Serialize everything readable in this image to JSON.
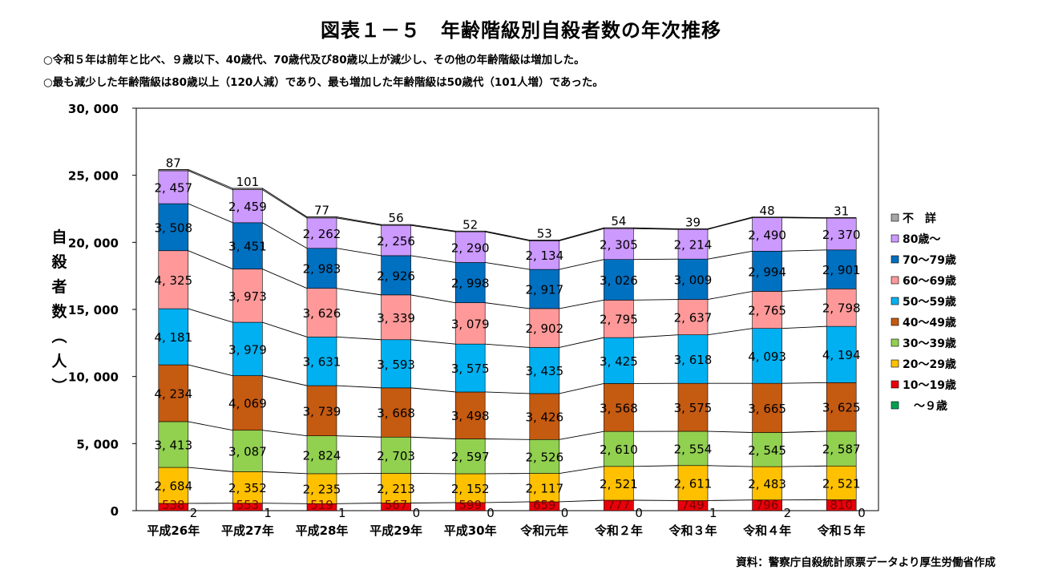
{
  "header": {
    "title": "図表１－５　年齢階級別自殺者数の年次推移",
    "note1": "○令和５年は前年と比べ、９歳以下、40歳代、70歳代及び80歳以上が減少し、その他の年齢階級は増加した。",
    "note2": "○最も減少した年齢階級は80歳以上（120人減）であり、最も増加した年齢階級は50歳代（101人増）であった。"
  },
  "footer": {
    "source": "資料：警察庁自殺統計原票データより厚生労働省作成"
  },
  "chart_data": {
    "type": "bar",
    "stacked": true,
    "title": "",
    "xlabel": "",
    "ylabel": "自殺者数（人）",
    "ylim": [
      0,
      30000
    ],
    "yticks": [
      "0",
      "5, 000",
      "10, 000",
      "15, 000",
      "20, 000",
      "25, 000",
      "30, 000"
    ],
    "categories": [
      "平成26年",
      "平成27年",
      "平成28年",
      "平成29年",
      "平成30年",
      "令和元年",
      "令和２年",
      "令和３年",
      "令和４年",
      "令和５年"
    ],
    "legend_position": "right",
    "series": [
      {
        "name": "　～９歳",
        "color": "#00a050",
        "values": [
          2,
          1,
          1,
          0,
          0,
          0,
          0,
          1,
          2,
          0
        ],
        "labels": [
          "2",
          "1",
          "1",
          "0",
          "0",
          "0",
          "0",
          "1",
          "2",
          "0"
        ]
      },
      {
        "name": "10～19歳",
        "color": "#e8000a",
        "values": [
          538,
          553,
          519,
          567,
          599,
          659,
          777,
          749,
          796,
          810
        ],
        "labels": [
          "538",
          "553",
          "519",
          "567",
          "599",
          "659",
          "777",
          "749",
          "796",
          "810"
        ]
      },
      {
        "name": "20～29歳",
        "color": "#ffc000",
        "values": [
          2684,
          2352,
          2235,
          2213,
          2152,
          2117,
          2521,
          2611,
          2483,
          2521
        ],
        "labels": [
          "2, 684",
          "2, 352",
          "2, 235",
          "2, 213",
          "2, 152",
          "2, 117",
          "2, 521",
          "2, 611",
          "2, 483",
          "2, 521"
        ]
      },
      {
        "name": "30～39歳",
        "color": "#92d050",
        "values": [
          3413,
          3087,
          2824,
          2703,
          2597,
          2526,
          2610,
          2554,
          2545,
          2587
        ],
        "labels": [
          "3, 413",
          "3, 087",
          "2, 824",
          "2, 703",
          "2, 597",
          "2, 526",
          "2, 610",
          "2, 554",
          "2, 545",
          "2, 587"
        ]
      },
      {
        "name": "40～49歳",
        "color": "#c55a11",
        "values": [
          4234,
          4069,
          3739,
          3668,
          3498,
          3426,
          3568,
          3575,
          3665,
          3625
        ],
        "labels": [
          "4, 234",
          "4, 069",
          "3, 739",
          "3, 668",
          "3, 498",
          "3, 426",
          "3, 568",
          "3, 575",
          "3, 665",
          "3, 625"
        ]
      },
      {
        "name": "50～59歳",
        "color": "#00b0f0",
        "values": [
          4181,
          3979,
          3631,
          3593,
          3575,
          3435,
          3425,
          3618,
          4093,
          4194
        ],
        "labels": [
          "4, 181",
          "3, 979",
          "3, 631",
          "3, 593",
          "3, 575",
          "3, 435",
          "3, 425",
          "3, 618",
          "4, 093",
          "4, 194"
        ]
      },
      {
        "name": "60～69歳",
        "color": "#ff9999",
        "values": [
          4325,
          3973,
          3626,
          3339,
          3079,
          2902,
          2795,
          2637,
          2765,
          2798
        ],
        "labels": [
          "4, 325",
          "3, 973",
          "3, 626",
          "3, 339",
          "3, 079",
          "2, 902",
          "2, 795",
          "2, 637",
          "2, 765",
          "2, 798"
        ]
      },
      {
        "name": "70～79歳",
        "color": "#0070c0",
        "values": [
          3508,
          3451,
          2983,
          2926,
          2998,
          2917,
          3026,
          3009,
          2994,
          2901
        ],
        "labels": [
          "3, 508",
          "3, 451",
          "2, 983",
          "2, 926",
          "2, 998",
          "2, 917",
          "3, 026",
          "3, 009",
          "2, 994",
          "2, 901"
        ]
      },
      {
        "name": "80歳～",
        "color": "#cc99ff",
        "values": [
          2457,
          2459,
          2262,
          2256,
          2290,
          2134,
          2305,
          2214,
          2490,
          2370
        ],
        "labels": [
          "2, 457",
          "2, 459",
          "2, 262",
          "2, 256",
          "2, 290",
          "2, 134",
          "2, 305",
          "2, 214",
          "2, 490",
          "2, 370"
        ]
      },
      {
        "name": "不　詳",
        "color": "#a6a6a6",
        "values": [
          87,
          101,
          77,
          56,
          52,
          53,
          54,
          39,
          48,
          31
        ],
        "labels": [
          "87",
          "101",
          "77",
          "56",
          "52",
          "53",
          "54",
          "39",
          "48",
          "31"
        ]
      }
    ]
  }
}
